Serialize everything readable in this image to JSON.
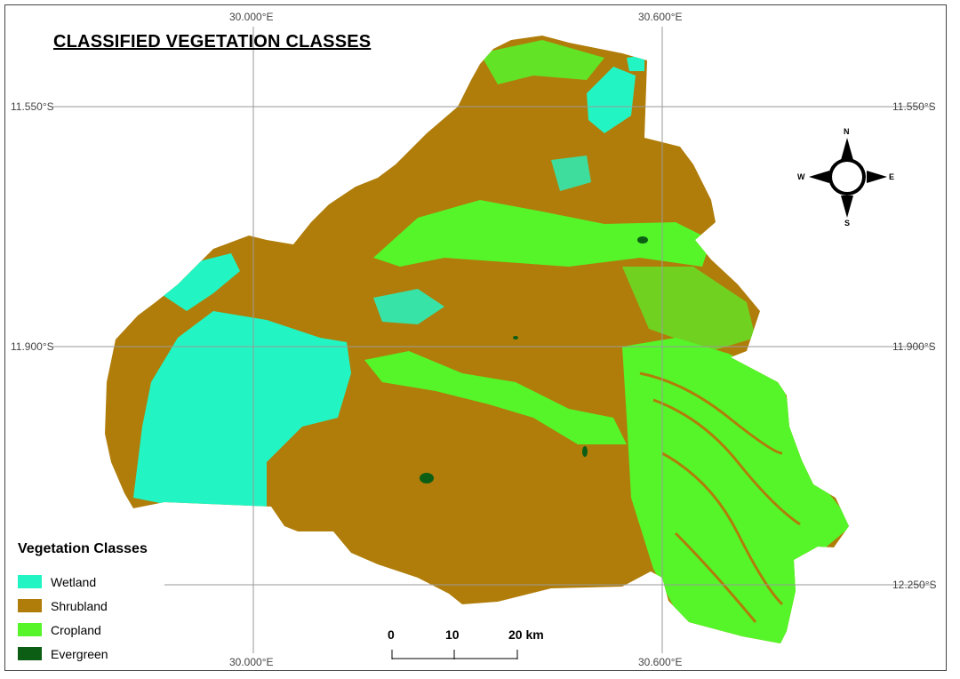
{
  "title": "CLASSIFIED VEGETATION CLASSES",
  "grid": {
    "lon_top": [
      "30.000°E",
      "30.600°E"
    ],
    "lon_bottom": [
      "30.000°E",
      "30.600°E"
    ],
    "lat_left": [
      "11.550°S",
      "11.900°S",
      "12.250°S"
    ],
    "lat_right": [
      "11.550°S",
      "11.900°S",
      "12.250°S"
    ]
  },
  "legend": {
    "title": "Vegetation Classes",
    "items": [
      {
        "label": "Wetland",
        "color": "#22f5c3"
      },
      {
        "label": "Shrubland",
        "color": "#b07d0a"
      },
      {
        "label": "Cropland",
        "color": "#55f52a"
      },
      {
        "label": "Evergreen",
        "color": "#0b5e14"
      }
    ]
  },
  "scale_bar": {
    "ticks": [
      "0",
      "10",
      "20 km"
    ]
  },
  "north_arrow": {
    "n": "N",
    "s": "S",
    "e": "E",
    "w": "W"
  }
}
